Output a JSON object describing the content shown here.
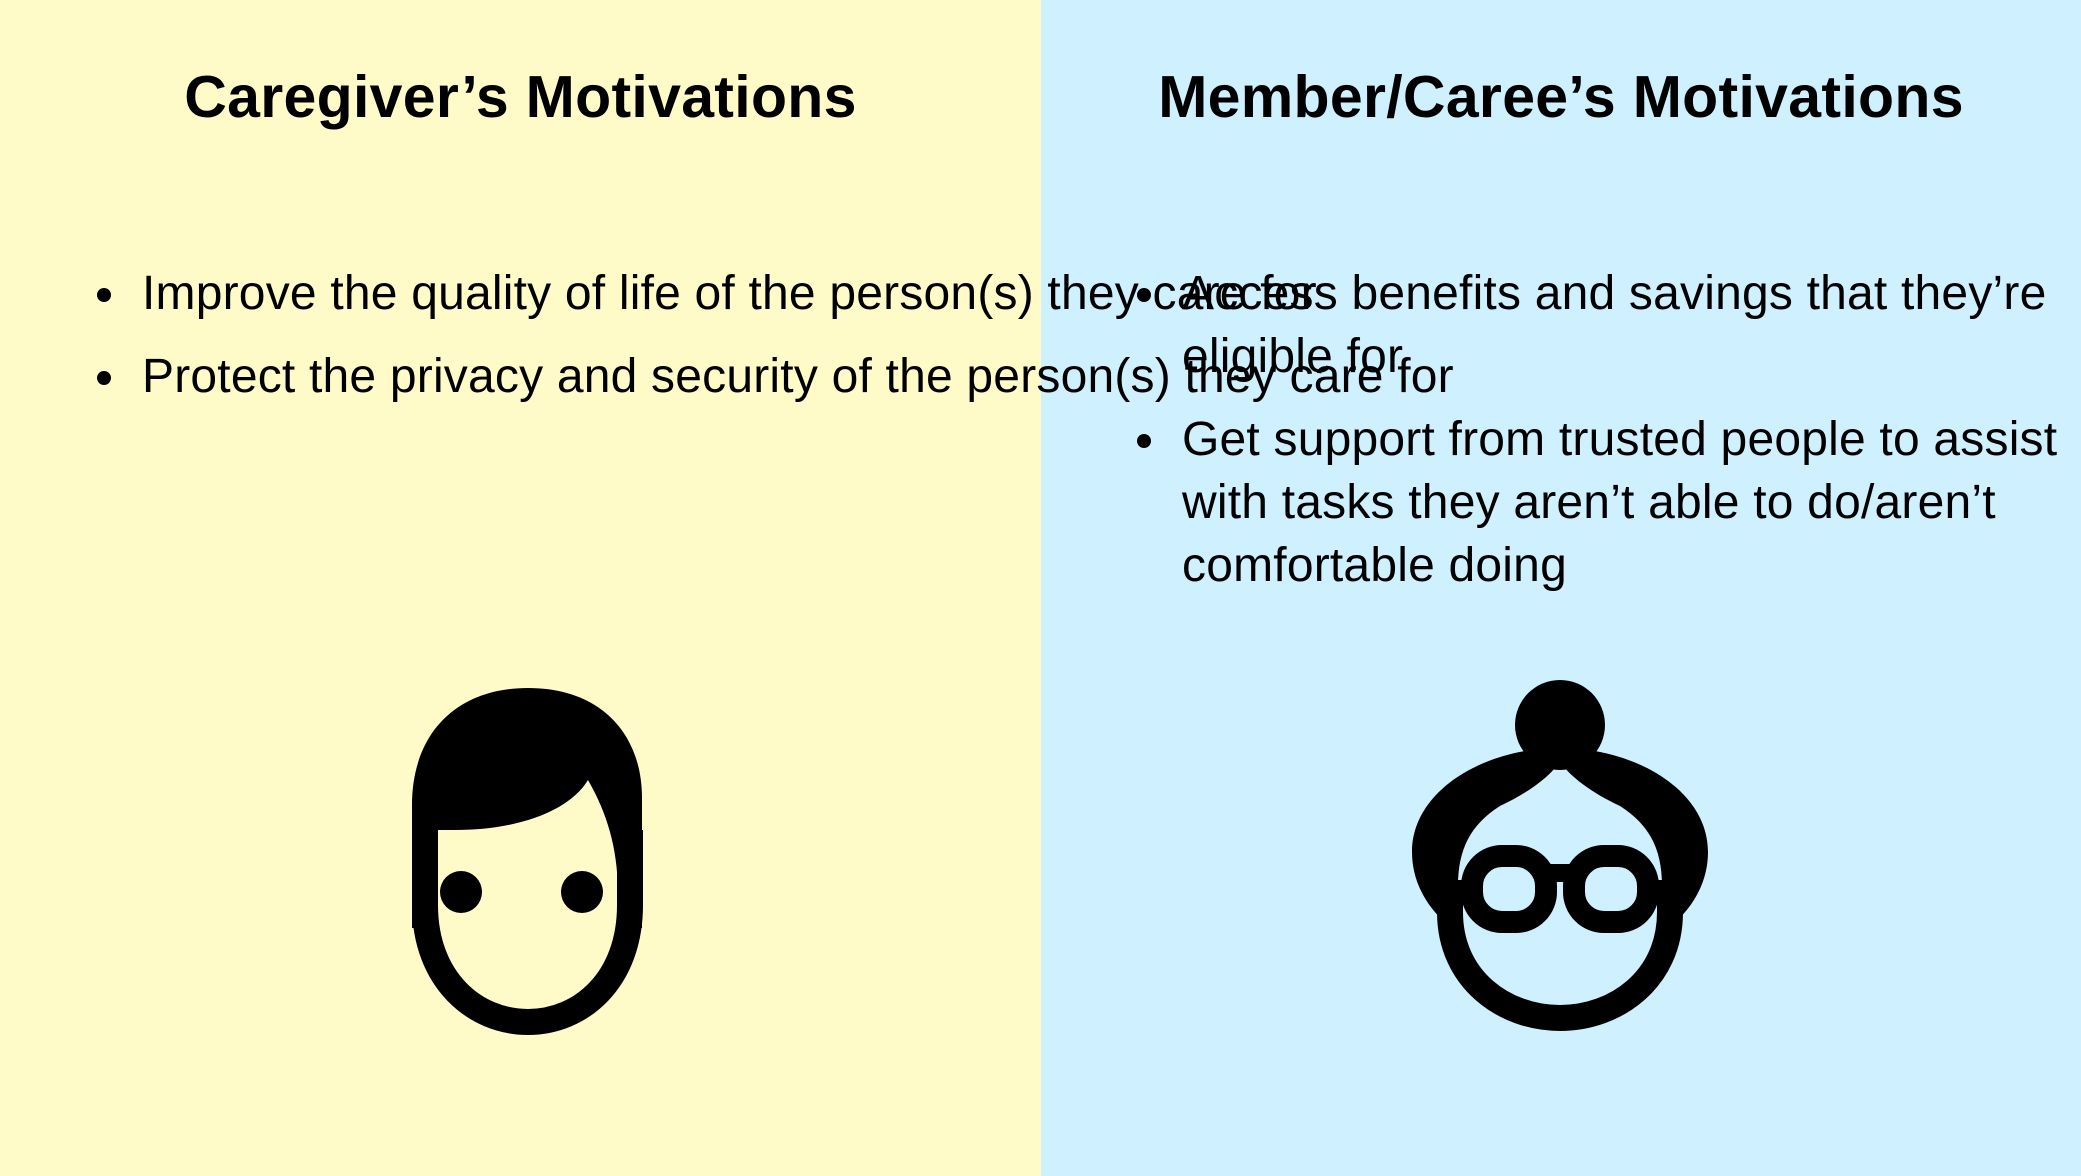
{
  "colors": {
    "left_bg": "#fffbc8",
    "right_bg": "#cff0ff",
    "text": "#000000"
  },
  "left": {
    "title": "Caregiver’s Motivations",
    "bullets": [
      {
        "text": "Improve the quality of life of the person(s) they care for"
      },
      {
        "text": "Protect the privacy and security of the person(s) they care for"
      }
    ],
    "icon": "man-face-icon"
  },
  "right": {
    "title": "Member/Caree’s Motivations",
    "bullets": [
      {
        "text": "Access benefits and savings that they’re eligible for"
      },
      {
        "text": "Get support from trusted people to assist with tasks they aren’t able to do/aren’t comfortable doing"
      }
    ],
    "icon": "older-woman-glasses-face-icon"
  }
}
